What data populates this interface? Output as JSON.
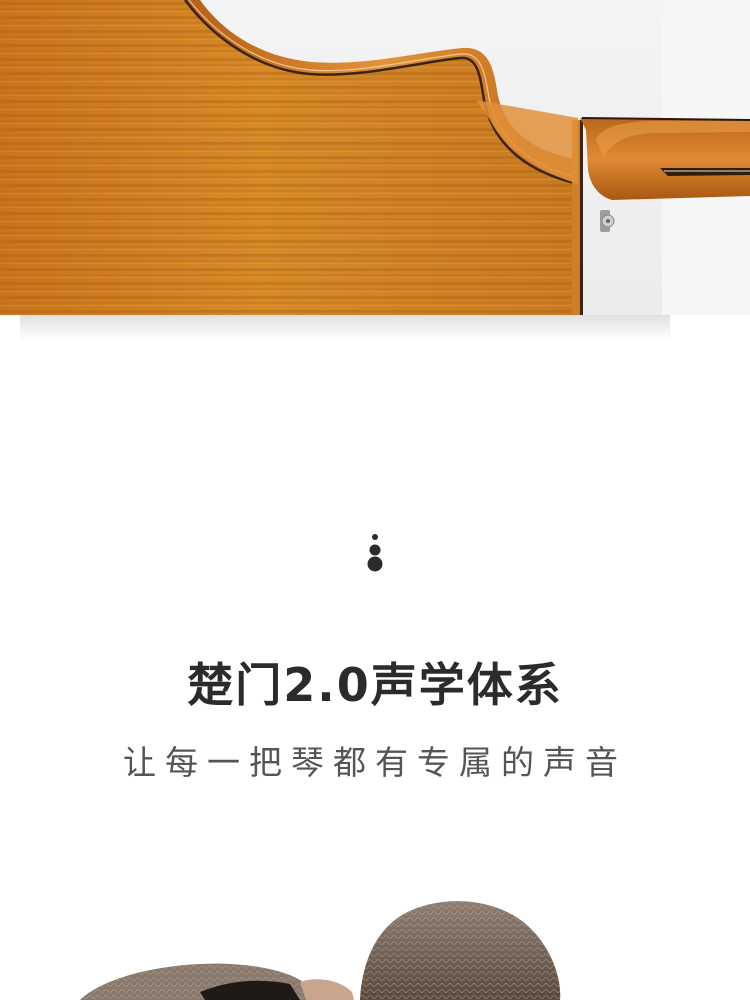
{
  "headline": "楚门2.0声学体系",
  "subline": "让每一把琴都有专属的声音",
  "colors": {
    "wood": "#C87A1E",
    "wood_dark": "#9A5410",
    "text_dark": "#2b2b2b",
    "text_mid": "#555555"
  },
  "images": {
    "hero": "guitar-body-back-photo",
    "portrait": "person-hair-photo"
  }
}
